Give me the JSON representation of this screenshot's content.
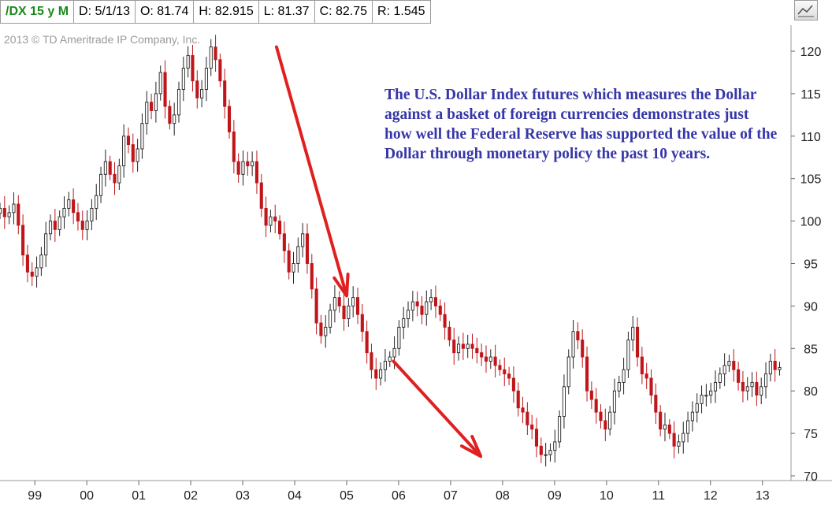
{
  "header": {
    "symbol": "/DX 15 y M",
    "date": "D: 5/1/13",
    "open": "O: 81.74",
    "high": "H: 82.915",
    "low": "L: 81.37",
    "close": "C: 82.75",
    "range": "R: 1.545"
  },
  "toolbar": {
    "chart_tool_icon": "chart-line-icon"
  },
  "copyright": "2013 © TD Ameritrade IP Company, Inc.",
  "annotation": "The U.S. Dollar Index futures which measures the Dollar against a basket of foreign currencies demonstrates just how well the Federal Reserve has supported the value of the Dollar through monetary policy the past 10 years.",
  "chart_data": {
    "type": "candlestick",
    "title": "",
    "xlabel": "",
    "ylabel": "",
    "ylim": [
      70,
      123
    ],
    "yticks": [
      70,
      75,
      80,
      85,
      90,
      95,
      100,
      105,
      110,
      115,
      120
    ],
    "xlim": [
      1998.33,
      2013.55
    ],
    "x_ticks": [
      {
        "label": "99",
        "x": 1999.0
      },
      {
        "label": "00",
        "x": 2000.0
      },
      {
        "label": "01",
        "x": 2001.0
      },
      {
        "label": "02",
        "x": 2002.0
      },
      {
        "label": "03",
        "x": 2003.0
      },
      {
        "label": "04",
        "x": 2004.0
      },
      {
        "label": "05",
        "x": 2005.0
      },
      {
        "label": "06",
        "x": 2006.0
      },
      {
        "label": "07",
        "x": 2007.0
      },
      {
        "label": "08",
        "x": 2008.0
      },
      {
        "label": "09",
        "x": 2009.0
      },
      {
        "label": "10",
        "x": 2010.0
      },
      {
        "label": "11",
        "x": 2011.0
      },
      {
        "label": "12",
        "x": 2012.0
      },
      {
        "label": "13",
        "x": 2013.0
      }
    ],
    "series": [
      {
        "closes": [
          101.5,
          100.5,
          101.0,
          102.0,
          99.5,
          96.0,
          94.0,
          93.5,
          94.5,
          96.0,
          98.5,
          100.0,
          99.0,
          100.5,
          101.5,
          102.5,
          101.0,
          100.0,
          99.0,
          100.0,
          101.5,
          103.0,
          105.5,
          107.0,
          105.5,
          104.5,
          106.5,
          110.0,
          109.0,
          107.0,
          108.5,
          111.5,
          114.0,
          113.0,
          115.0,
          117.5,
          113.5,
          111.5,
          112.5,
          115.5,
          118.0,
          119.5,
          116.5,
          114.5,
          115.5,
          118.0,
          120.5,
          119.0,
          116.5,
          113.5,
          110.5,
          107.0,
          105.5,
          107.0,
          106.5,
          107.0,
          104.5,
          101.5,
          99.5,
          100.5,
          100.0,
          98.5,
          96.5,
          94.0,
          95.0,
          97.0,
          98.5,
          95.0,
          92.0,
          88.0,
          86.5,
          87.5,
          89.5,
          91.0,
          90.0,
          88.5,
          90.0,
          91.0,
          89.0,
          87.0,
          84.5,
          82.5,
          81.5,
          82.5,
          83.5,
          84.0,
          85.0,
          87.5,
          88.5,
          89.5,
          90.5,
          90.0,
          89.0,
          90.5,
          91.0,
          90.0,
          89.0,
          87.5,
          86.0,
          84.5,
          85.5,
          85.0,
          85.5,
          85.0,
          84.5,
          84.0,
          83.5,
          84.0,
          83.0,
          82.5,
          82.0,
          81.5,
          80.0,
          78.0,
          77.5,
          76.0,
          75.5,
          73.5,
          72.5,
          72.5,
          73.0,
          74.0,
          77.0,
          80.5,
          84.0,
          87.0,
          86.0,
          84.0,
          80.0,
          79.0,
          77.5,
          76.5,
          75.5,
          77.5,
          80.0,
          81.0,
          82.5,
          86.0,
          87.5,
          84.0,
          82.0,
          81.5,
          79.5,
          77.5,
          75.5,
          76.0,
          75.0,
          73.5,
          74.0,
          75.0,
          76.5,
          77.5,
          78.5,
          79.5,
          79.5,
          80.0,
          81.0,
          82.0,
          83.0,
          83.5,
          82.5,
          81.0,
          80.0,
          80.5,
          81.0,
          79.5,
          80.5,
          82.0,
          83.5,
          82.5,
          82.75
        ]
      }
    ],
    "annotations": [
      {
        "type": "arrow",
        "from": [
          2003.65,
          120.5
        ],
        "to": [
          2005.0,
          91.2
        ]
      },
      {
        "type": "arrow",
        "from": [
          2005.9,
          83.5
        ],
        "to": [
          2007.58,
          72.3
        ]
      }
    ]
  }
}
